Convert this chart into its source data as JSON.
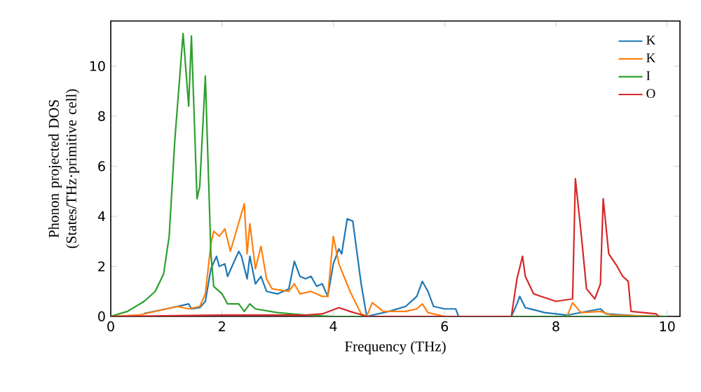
{
  "chart_data": {
    "type": "line",
    "xlabel": "Frequency (THz)",
    "ylabel": "Phonon projected DOS (States/THz·primitive cell)",
    "xlim": [
      0,
      10.23
    ],
    "ylim": [
      0,
      11.8
    ],
    "xticks": [
      0,
      2,
      4,
      6,
      8,
      10
    ],
    "yticks": [
      0,
      2,
      4,
      6,
      8,
      10
    ],
    "grid": false,
    "legend": "top right",
    "marker": "none",
    "line_style": "solid",
    "series": [
      {
        "name": "K",
        "color": "#1f77b4",
        "x": [
          0.6,
          1.0,
          1.2,
          1.4,
          1.45,
          1.6,
          1.7,
          1.8,
          1.9,
          1.95,
          2.05,
          2.1,
          2.3,
          2.35,
          2.45,
          2.5,
          2.6,
          2.7,
          2.8,
          3.0,
          3.2,
          3.3,
          3.4,
          3.5,
          3.6,
          3.7,
          3.8,
          3.9,
          4.0,
          4.1,
          4.15,
          4.25,
          4.35,
          4.5,
          4.6,
          4.8,
          5.0,
          5.3,
          5.5,
          5.6,
          5.7,
          5.8,
          6.0,
          6.2,
          6.25,
          7.2,
          7.3,
          7.35,
          7.45,
          7.8,
          8.2,
          8.8,
          8.9,
          9.5,
          10
        ],
        "values": [
          0.12,
          0.3,
          0.4,
          0.5,
          0.3,
          0.35,
          0.6,
          1.9,
          2.4,
          2.0,
          2.1,
          1.6,
          2.6,
          2.4,
          1.5,
          2.4,
          1.3,
          1.6,
          1.0,
          0.9,
          1.1,
          2.2,
          1.6,
          1.5,
          1.6,
          1.2,
          1.3,
          0.8,
          2.1,
          2.7,
          2.5,
          3.9,
          3.8,
          1.3,
          0,
          0.1,
          0.2,
          0.4,
          0.8,
          1.4,
          1.0,
          0.4,
          0.3,
          0.3,
          0,
          0,
          0.5,
          0.8,
          0.35,
          0.15,
          0.05,
          0.3,
          0.1,
          0.02,
          0
        ]
      },
      {
        "name": "K",
        "color": "#ff7f0e",
        "x": [
          0,
          0.5,
          1.0,
          1.2,
          1.4,
          1.6,
          1.7,
          1.8,
          1.85,
          1.95,
          2.05,
          2.15,
          2.4,
          2.45,
          2.5,
          2.6,
          2.7,
          2.8,
          2.9,
          3.2,
          3.3,
          3.4,
          3.6,
          3.8,
          3.9,
          4.0,
          4.1,
          4.3,
          4.5,
          4.6,
          4.7,
          4.9,
          5.3,
          5.5,
          5.6,
          5.7,
          6.0,
          8.2,
          8.3,
          8.45,
          8.8,
          9.0,
          10
        ],
        "values": [
          0,
          0.05,
          0.3,
          0.4,
          0.3,
          0.4,
          0.9,
          2.9,
          3.4,
          3.2,
          3.5,
          2.6,
          4.5,
          2.5,
          3.7,
          1.9,
          2.8,
          1.5,
          1.1,
          1.0,
          1.3,
          0.9,
          1.0,
          0.8,
          0.8,
          3.2,
          2.1,
          1.0,
          0.1,
          0,
          0.55,
          0.2,
          0.2,
          0.3,
          0.5,
          0.15,
          0,
          0,
          0.55,
          0.15,
          0.2,
          0.05,
          0
        ]
      },
      {
        "name": "I",
        "color": "#2ca02c",
        "x": [
          0,
          0.3,
          0.6,
          0.8,
          0.95,
          1.05,
          1.15,
          1.3,
          1.4,
          1.45,
          1.55,
          1.6,
          1.7,
          1.8,
          1.85,
          2.0,
          2.1,
          2.3,
          2.4,
          2.5,
          2.6,
          3.0,
          3.5,
          4.0,
          10
        ],
        "values": [
          0,
          0.2,
          0.6,
          1.0,
          1.7,
          3.2,
          7.0,
          11.3,
          8.4,
          11.2,
          4.7,
          5.2,
          9.6,
          2.5,
          1.2,
          0.9,
          0.5,
          0.5,
          0.2,
          0.5,
          0.3,
          0.15,
          0.05,
          0,
          0
        ]
      },
      {
        "name": "O",
        "color": "#d62728",
        "x": [
          0,
          2.0,
          3.5,
          3.8,
          4.1,
          4.3,
          4.6,
          7.2,
          7.3,
          7.4,
          7.45,
          7.6,
          8.0,
          8.3,
          8.35,
          8.45,
          8.55,
          8.7,
          8.8,
          8.85,
          8.95,
          9.1,
          9.2,
          9.3,
          9.35,
          9.8,
          9.85
        ],
        "values": [
          0,
          0.05,
          0.05,
          0.1,
          0.35,
          0.2,
          0,
          0,
          1.5,
          2.4,
          1.6,
          0.9,
          0.6,
          0.7,
          5.5,
          3.4,
          1.1,
          0.7,
          1.3,
          4.7,
          2.5,
          2.0,
          1.6,
          1.4,
          0.2,
          0.1,
          0
        ]
      }
    ]
  }
}
